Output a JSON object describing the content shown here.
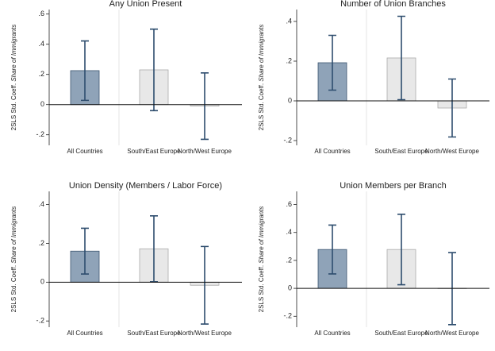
{
  "chart_data": [
    {
      "type": "bar",
      "title": "Any Union Present",
      "ylabel": "2SLS Std. Coeff.",
      "ylabel_emphasis": "Share of Immigrants",
      "categories": [
        "All Countries",
        "South/East Europe",
        "North/West Europe"
      ],
      "values": [
        0.225,
        0.23,
        -0.01
      ],
      "errors": [
        0.197,
        0.27,
        0.22
      ],
      "colors": [
        "#8fa3b8",
        "#e8e8e8",
        "#e8e8e8"
      ],
      "error_color": "#2e4d6e",
      "ylim": [
        -0.27,
        0.63
      ],
      "yticks": [
        {
          "value": -0.2,
          "label": "-.2"
        },
        0,
        {
          "value": 0.2,
          "label": ".2"
        },
        {
          "value": 0.4,
          "label": ".4"
        },
        {
          "value": 0.6,
          "label": ".6"
        }
      ]
    },
    {
      "type": "bar",
      "title": "Number of Union Branches",
      "ylabel": "2SLS Std. Coeff.",
      "ylabel_emphasis": "Share of Immigrants",
      "categories": [
        "All Countries",
        "South/East Europe",
        "North/West Europe"
      ],
      "values": [
        0.192,
        0.216,
        -0.036
      ],
      "errors": [
        0.138,
        0.21,
        0.146
      ],
      "colors": [
        "#8fa3b8",
        "#e8e8e8",
        "#e8e8e8"
      ],
      "error_color": "#2e4d6e",
      "ylim": [
        -0.224,
        0.46
      ],
      "yticks": [
        {
          "value": -0.2,
          "label": "-.2"
        },
        0,
        {
          "value": 0.2,
          "label": ".2"
        },
        {
          "value": 0.4,
          "label": ".4"
        }
      ]
    },
    {
      "type": "bar",
      "title": "Union Density (Members / Labor Force)",
      "ylabel": "2SLS Std. Coeff.",
      "ylabel_emphasis": "Share of Immigrants",
      "categories": [
        "All Countries",
        "South/East Europe",
        "North/West Europe"
      ],
      "values": [
        0.16,
        0.172,
        -0.016
      ],
      "errors": [
        0.118,
        0.17,
        0.2
      ],
      "colors": [
        "#8fa3b8",
        "#e8e8e8",
        "#e8e8e8"
      ],
      "error_color": "#2e4d6e",
      "ylim": [
        -0.232,
        0.468
      ],
      "yticks": [
        {
          "value": -0.2,
          "label": "-.2"
        },
        0,
        {
          "value": 0.2,
          "label": ".2"
        },
        {
          "value": 0.4,
          "label": ".4"
        }
      ]
    },
    {
      "type": "bar",
      "title": "Union Members per Branch",
      "ylabel": "2SLS Std. Coeff.",
      "ylabel_emphasis": "Share of Immigrants",
      "categories": [
        "All Countries",
        "South/East Europe",
        "North/West Europe"
      ],
      "values": [
        0.278,
        0.278,
        -0.002
      ],
      "errors": [
        0.175,
        0.252,
        0.258
      ],
      "colors": [
        "#8fa3b8",
        "#e8e8e8",
        "#e8e8e8"
      ],
      "error_color": "#2e4d6e",
      "ylim": [
        -0.278,
        0.694
      ],
      "yticks": [
        {
          "value": -0.2,
          "label": "-.2"
        },
        0,
        {
          "value": 0.2,
          "label": ".2"
        },
        {
          "value": 0.4,
          "label": ".4"
        },
        {
          "value": 0.6,
          "label": ".6"
        }
      ]
    }
  ]
}
